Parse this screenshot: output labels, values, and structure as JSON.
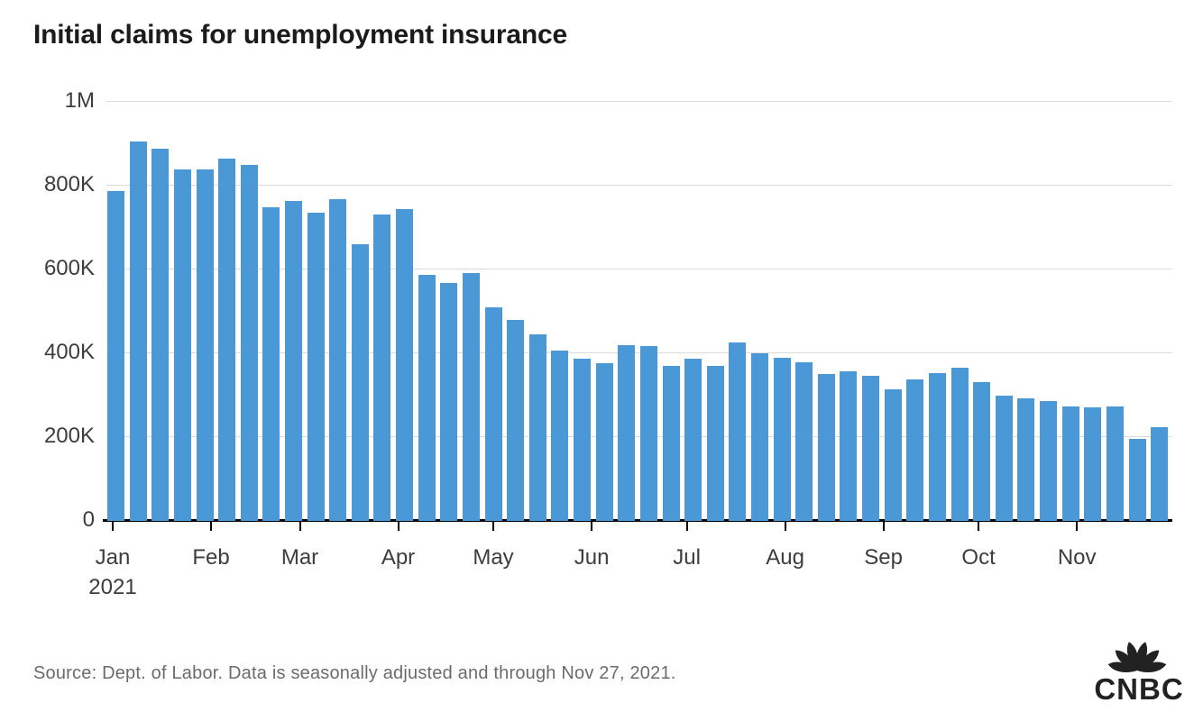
{
  "title": "Initial claims for unemployment insurance",
  "source": "Source: Dept. of Labor. Data is seasonally adjusted and through Nov 27, 2021.",
  "logo": {
    "brand": "CNBC"
  },
  "colors": {
    "bar": "#4a98d5",
    "gridline": "#dcdcdc",
    "axis": "#000000",
    "title_text": "#1b1b1b",
    "axis_label_text": "#3d3d3d",
    "source_text": "#6b6b6b",
    "logo_ink": "#222222"
  },
  "chart_data": {
    "type": "bar",
    "title": "Initial claims for unemployment insurance",
    "xlabel": "",
    "ylabel": "",
    "ylim": [
      0,
      1000000
    ],
    "grid": "horizontal",
    "legend": "none",
    "y_ticks": [
      {
        "label": "0",
        "value": 0
      },
      {
        "label": "200K",
        "value": 200000
      },
      {
        "label": "400K",
        "value": 400000
      },
      {
        "label": "600K",
        "value": 600000
      },
      {
        "label": "800K",
        "value": 800000
      },
      {
        "label": "1M",
        "value": 1000000
      }
    ],
    "x_months": [
      {
        "label": "Jan",
        "sublabel": "2021",
        "day_of_year": 0
      },
      {
        "label": "Feb",
        "sublabel": "",
        "day_of_year": 31
      },
      {
        "label": "Mar",
        "sublabel": "",
        "day_of_year": 59
      },
      {
        "label": "Apr",
        "sublabel": "",
        "day_of_year": 90
      },
      {
        "label": "May",
        "sublabel": "",
        "day_of_year": 120
      },
      {
        "label": "Jun",
        "sublabel": "",
        "day_of_year": 151
      },
      {
        "label": "Jul",
        "sublabel": "",
        "day_of_year": 181
      },
      {
        "label": "Aug",
        "sublabel": "",
        "day_of_year": 212
      },
      {
        "label": "Sep",
        "sublabel": "",
        "day_of_year": 243
      },
      {
        "label": "Oct",
        "sublabel": "",
        "day_of_year": 273
      },
      {
        "label": "Nov",
        "sublabel": "",
        "day_of_year": 304
      }
    ],
    "series": [
      {
        "name": "Weekly initial claims, seasonally adjusted",
        "first_point_day_of_year": 1,
        "step_days": 7,
        "values": [
          784000,
          904000,
          886000,
          836000,
          837000,
          863000,
          848000,
          747000,
          761000,
          734000,
          765000,
          658000,
          729000,
          742000,
          586000,
          566000,
          590000,
          507000,
          478000,
          444000,
          405000,
          385000,
          375000,
          418000,
          415000,
          368000,
          386000,
          368000,
          424000,
          399000,
          387000,
          377000,
          349000,
          354000,
          345000,
          312000,
          335000,
          351000,
          364000,
          329000,
          296000,
          291000,
          283000,
          271000,
          269000,
          270000,
          194000,
          222000
        ]
      }
    ]
  }
}
